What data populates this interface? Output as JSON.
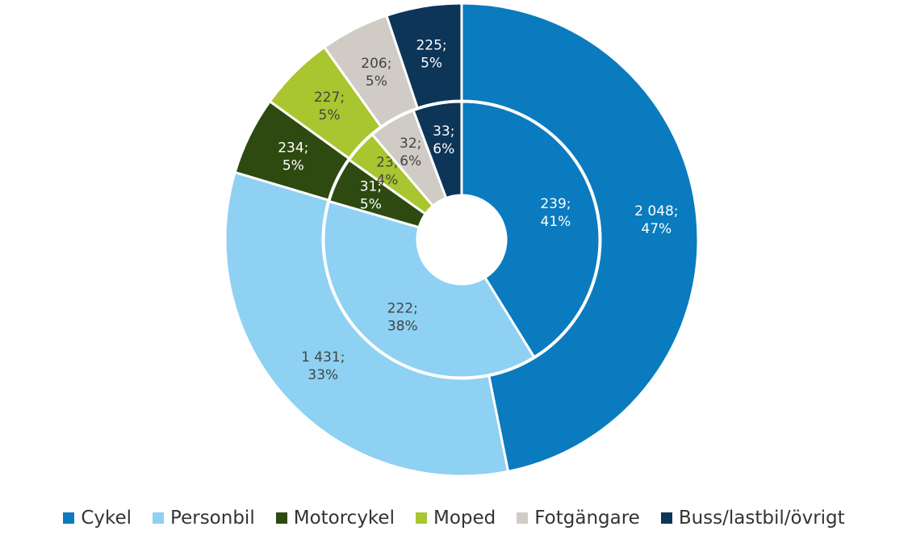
{
  "chart_data": {
    "type": "nested-donut",
    "categories": [
      "Cykel",
      "Personbil",
      "Motorcykel",
      "Moped",
      "Fotgängare",
      "Buss/lastbil/övrigt"
    ],
    "colors": [
      "#0a7bbf",
      "#8ed1f3",
      "#2e4a10",
      "#a9c52f",
      "#d0ccc5",
      "#0d3558"
    ],
    "series": [
      {
        "values": [
          2048,
          1431,
          234,
          227,
          206,
          225
        ],
        "value_labels": [
          "2 048;",
          "1 431;",
          "234;",
          "227;",
          "206;",
          "225;"
        ],
        "percent_labels": [
          "47%",
          "33%",
          "5%",
          "5%",
          "5%",
          "5%"
        ]
      },
      {
        "values": [
          239,
          222,
          31,
          23,
          32,
          33
        ],
        "value_labels": [
          "239;",
          "222;",
          "31;",
          "23;",
          "32;",
          "33;"
        ],
        "percent_labels": [
          "41%",
          "38%",
          "5%",
          "4%",
          "6%",
          "6%"
        ]
      }
    ]
  }
}
